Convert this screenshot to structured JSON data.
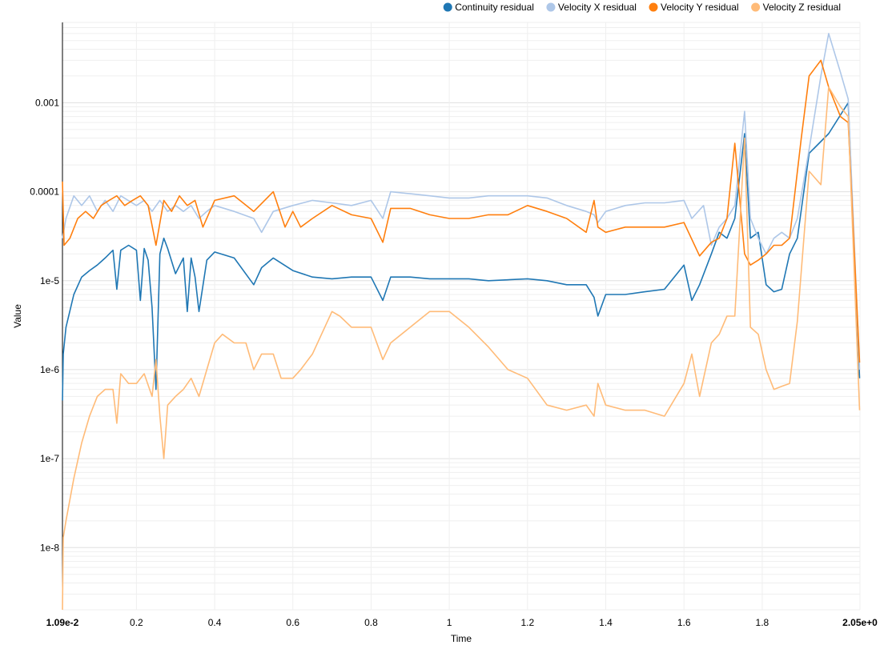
{
  "chart_data": {
    "type": "line",
    "xlabel": "Time",
    "ylabel": "Value",
    "yscale": "log",
    "xlim": [
      0.0109,
      2.05
    ],
    "ylim": [
      2e-09,
      0.008
    ],
    "x_ticks": [
      {
        "value": 0.0109,
        "label": "1.09e-2",
        "bold": true
      },
      {
        "value": 0.2,
        "label": "0.2"
      },
      {
        "value": 0.4,
        "label": "0.4"
      },
      {
        "value": 0.6,
        "label": "0.6"
      },
      {
        "value": 0.8,
        "label": "0.8"
      },
      {
        "value": 1.0,
        "label": "1"
      },
      {
        "value": 1.2,
        "label": "1.2"
      },
      {
        "value": 1.4,
        "label": "1.4"
      },
      {
        "value": 1.6,
        "label": "1.6"
      },
      {
        "value": 1.8,
        "label": "1.8"
      },
      {
        "value": 2.05,
        "label": "2.05e+0",
        "bold": true
      }
    ],
    "y_ticks": [
      {
        "value": 0.001,
        "label": "0.001"
      },
      {
        "value": 0.0001,
        "label": "0.0001"
      },
      {
        "value": 1e-05,
        "label": "1e-5"
      },
      {
        "value": 1e-06,
        "label": "1e-6"
      },
      {
        "value": 1e-07,
        "label": "1e-7"
      },
      {
        "value": 1e-08,
        "label": "1e-8"
      }
    ],
    "grid": true,
    "legend_position": "top-right",
    "series": [
      {
        "name": "Continuity residual",
        "color": "#1f77b4",
        "x": [
          0.011,
          0.013,
          0.02,
          0.04,
          0.06,
          0.08,
          0.1,
          0.12,
          0.14,
          0.15,
          0.16,
          0.18,
          0.2,
          0.21,
          0.22,
          0.23,
          0.24,
          0.25,
          0.26,
          0.27,
          0.28,
          0.3,
          0.32,
          0.33,
          0.34,
          0.35,
          0.36,
          0.38,
          0.4,
          0.45,
          0.5,
          0.52,
          0.55,
          0.6,
          0.65,
          0.7,
          0.75,
          0.8,
          0.83,
          0.85,
          0.9,
          0.95,
          1.0,
          1.05,
          1.1,
          1.2,
          1.25,
          1.3,
          1.35,
          1.37,
          1.38,
          1.4,
          1.45,
          1.5,
          1.55,
          1.6,
          1.62,
          1.64,
          1.67,
          1.69,
          1.71,
          1.73,
          1.755,
          1.77,
          1.79,
          1.81,
          1.83,
          1.85,
          1.87,
          1.89,
          1.92,
          1.97,
          2.02,
          2.049
        ],
        "y": [
          4.5e-07,
          1.5e-06,
          3e-06,
          7e-06,
          1.1e-05,
          1.3e-05,
          1.5e-05,
          1.8e-05,
          2.2e-05,
          8e-06,
          2.2e-05,
          2.5e-05,
          2.2e-05,
          6e-06,
          2.3e-05,
          1.7e-05,
          5e-06,
          6e-07,
          2e-05,
          3e-05,
          2.3e-05,
          1.2e-05,
          1.8e-05,
          4.5e-06,
          1.8e-05,
          1.1e-05,
          4.5e-06,
          1.7e-05,
          2.1e-05,
          1.8e-05,
          9e-06,
          1.4e-05,
          1.8e-05,
          1.3e-05,
          1.1e-05,
          1.05e-05,
          1.1e-05,
          1.1e-05,
          6e-06,
          1.1e-05,
          1.1e-05,
          1.05e-05,
          1.05e-05,
          1.05e-05,
          1e-05,
          1.05e-05,
          1e-05,
          9e-06,
          9e-06,
          6.5e-06,
          4e-06,
          7e-06,
          7e-06,
          7.5e-06,
          8e-06,
          1.5e-05,
          6e-06,
          9e-06,
          2e-05,
          3.5e-05,
          3e-05,
          5e-05,
          0.00045,
          3e-05,
          3.5e-05,
          9e-06,
          7.5e-06,
          8e-06,
          2e-05,
          3e-05,
          0.00027,
          0.00045,
          0.001,
          8e-07
        ]
      },
      {
        "name": "Velocity X residual",
        "color": "#aec7e8",
        "x": [
          0.011,
          0.02,
          0.04,
          0.06,
          0.08,
          0.1,
          0.12,
          0.14,
          0.16,
          0.2,
          0.22,
          0.24,
          0.26,
          0.28,
          0.3,
          0.32,
          0.34,
          0.36,
          0.38,
          0.4,
          0.45,
          0.5,
          0.52,
          0.55,
          0.6,
          0.65,
          0.7,
          0.75,
          0.8,
          0.83,
          0.85,
          0.9,
          0.95,
          1.0,
          1.05,
          1.1,
          1.2,
          1.25,
          1.3,
          1.35,
          1.37,
          1.38,
          1.4,
          1.45,
          1.5,
          1.55,
          1.6,
          1.62,
          1.65,
          1.67,
          1.69,
          1.71,
          1.73,
          1.755,
          1.77,
          1.79,
          1.81,
          1.83,
          1.85,
          1.87,
          1.89,
          1.92,
          1.95,
          1.97,
          2.0,
          2.02,
          2.049
        ],
        "y": [
          3e-05,
          5e-05,
          9e-05,
          7e-05,
          9e-05,
          6e-05,
          8e-05,
          6e-05,
          9e-05,
          7e-05,
          8e-05,
          6e-05,
          8e-05,
          6e-05,
          7e-05,
          6e-05,
          7e-05,
          5e-05,
          6e-05,
          7e-05,
          6e-05,
          5e-05,
          3.5e-05,
          6e-05,
          7e-05,
          8e-05,
          7.5e-05,
          7e-05,
          8e-05,
          5e-05,
          0.0001,
          9.5e-05,
          9e-05,
          8.5e-05,
          8.5e-05,
          9e-05,
          9e-05,
          8.5e-05,
          7e-05,
          6e-05,
          5.5e-05,
          4.5e-05,
          6e-05,
          7e-05,
          7.5e-05,
          7.5e-05,
          8e-05,
          5e-05,
          7e-05,
          2.5e-05,
          4e-05,
          5e-05,
          7e-05,
          0.0008,
          5e-05,
          3e-05,
          2e-05,
          3e-05,
          3.5e-05,
          3e-05,
          5e-05,
          0.0003,
          0.002,
          0.006,
          0.0022,
          0.0011,
          1e-06
        ]
      },
      {
        "name": "Velocity Y residual",
        "color": "#ff7f0e",
        "x": [
          0.011,
          0.015,
          0.03,
          0.05,
          0.07,
          0.09,
          0.11,
          0.13,
          0.15,
          0.17,
          0.19,
          0.21,
          0.23,
          0.25,
          0.27,
          0.29,
          0.31,
          0.33,
          0.35,
          0.37,
          0.4,
          0.45,
          0.5,
          0.55,
          0.58,
          0.6,
          0.62,
          0.65,
          0.7,
          0.75,
          0.8,
          0.83,
          0.85,
          0.9,
          0.95,
          1.0,
          1.05,
          1.1,
          1.15,
          1.2,
          1.25,
          1.3,
          1.35,
          1.37,
          1.38,
          1.4,
          1.45,
          1.5,
          1.55,
          1.6,
          1.64,
          1.67,
          1.69,
          1.71,
          1.73,
          1.755,
          1.77,
          1.79,
          1.81,
          1.83,
          1.85,
          1.87,
          1.9,
          1.92,
          1.95,
          1.97,
          2.0,
          2.02,
          2.049
        ],
        "y": [
          0.00013,
          2.5e-05,
          3e-05,
          5e-05,
          6e-05,
          5e-05,
          7e-05,
          8e-05,
          9e-05,
          7e-05,
          8e-05,
          9e-05,
          7e-05,
          2.5e-05,
          8e-05,
          6e-05,
          9e-05,
          7e-05,
          8e-05,
          4e-05,
          8e-05,
          9e-05,
          6e-05,
          0.0001,
          4e-05,
          6e-05,
          4e-05,
          5e-05,
          7e-05,
          5.5e-05,
          5e-05,
          2.7e-05,
          6.5e-05,
          6.5e-05,
          5.5e-05,
          5e-05,
          5e-05,
          5.5e-05,
          5.5e-05,
          7e-05,
          6e-05,
          5e-05,
          3.5e-05,
          8e-05,
          4e-05,
          3.5e-05,
          4e-05,
          4e-05,
          4e-05,
          4.5e-05,
          1.9e-05,
          2.7e-05,
          3e-05,
          5e-05,
          0.00035,
          2e-05,
          1.5e-05,
          1.7e-05,
          2e-05,
          2.5e-05,
          2.5e-05,
          3e-05,
          0.0004,
          0.002,
          0.003,
          0.0015,
          0.0007,
          0.0006,
          1.2e-06
        ]
      },
      {
        "name": "Velocity Z residual",
        "color": "#ffbb78",
        "x": [
          0.011,
          0.013,
          0.02,
          0.04,
          0.06,
          0.08,
          0.1,
          0.12,
          0.14,
          0.15,
          0.16,
          0.18,
          0.2,
          0.22,
          0.24,
          0.25,
          0.26,
          0.27,
          0.28,
          0.3,
          0.32,
          0.34,
          0.36,
          0.38,
          0.4,
          0.42,
          0.45,
          0.48,
          0.5,
          0.52,
          0.55,
          0.57,
          0.6,
          0.62,
          0.65,
          0.7,
          0.72,
          0.75,
          0.8,
          0.83,
          0.85,
          0.9,
          0.95,
          1.0,
          1.05,
          1.1,
          1.15,
          1.2,
          1.25,
          1.3,
          1.35,
          1.37,
          1.38,
          1.4,
          1.45,
          1.5,
          1.55,
          1.6,
          1.62,
          1.64,
          1.67,
          1.69,
          1.71,
          1.73,
          1.755,
          1.77,
          1.79,
          1.81,
          1.83,
          1.85,
          1.87,
          1.89,
          1.92,
          1.95,
          1.97,
          2.0,
          2.02,
          2.049
        ],
        "y": [
          2e-09,
          1.3e-08,
          2e-08,
          6e-08,
          1.5e-07,
          3e-07,
          5e-07,
          6e-07,
          6e-07,
          2.5e-07,
          9e-07,
          7e-07,
          7e-07,
          9e-07,
          5e-07,
          1.3e-06,
          3e-07,
          1e-07,
          4e-07,
          5e-07,
          6e-07,
          8e-07,
          5e-07,
          1e-06,
          2e-06,
          2.5e-06,
          2e-06,
          2e-06,
          1e-06,
          1.5e-06,
          1.5e-06,
          8e-07,
          8e-07,
          1e-06,
          1.5e-06,
          4.5e-06,
          4e-06,
          3e-06,
          3e-06,
          1.3e-06,
          2e-06,
          3e-06,
          4.5e-06,
          4.5e-06,
          3e-06,
          1.8e-06,
          1e-06,
          8e-07,
          4e-07,
          3.5e-07,
          4e-07,
          3e-07,
          7e-07,
          4e-07,
          3.5e-07,
          3.5e-07,
          3e-07,
          7e-07,
          1.5e-06,
          5e-07,
          2e-06,
          2.5e-06,
          4e-06,
          4e-06,
          0.0004,
          3e-06,
          2.5e-06,
          1e-06,
          6e-07,
          6.5e-07,
          7e-07,
          3.5e-06,
          0.00017,
          0.00012,
          0.0015,
          0.0009,
          0.0007,
          3.5e-07
        ]
      }
    ]
  }
}
